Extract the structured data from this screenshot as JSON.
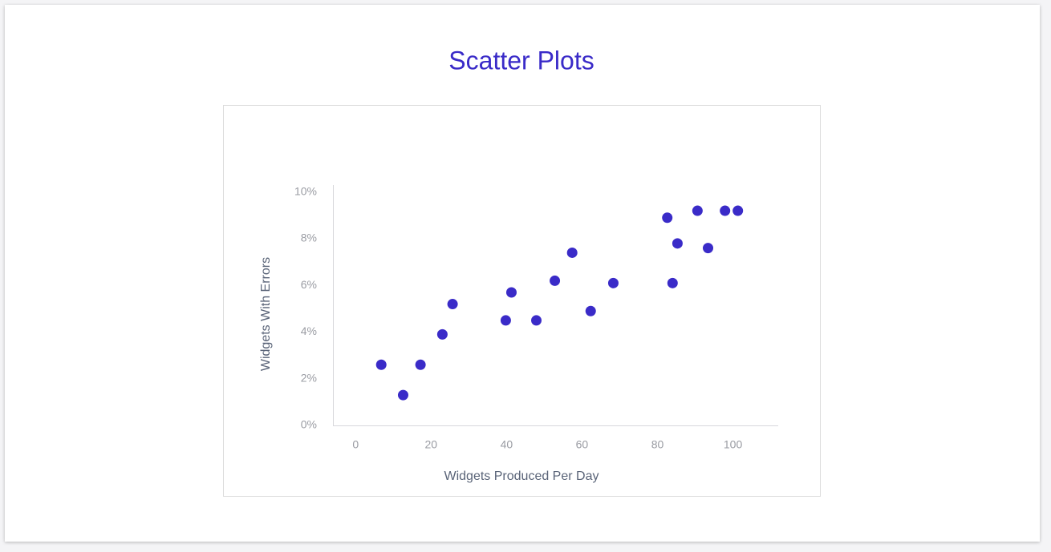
{
  "chart_data": {
    "type": "scatter",
    "title": "Scatter Plots",
    "x_label": "Widgets Produced Per Day",
    "y_label": "Widgets  With Errors",
    "color": "#3a2bc8",
    "x": [
      6.8,
      12.6,
      17.2,
      23,
      25.7,
      39.8,
      41.3,
      47.9,
      52.8,
      57.4,
      62.3,
      68.3,
      82.6,
      84,
      85.3,
      90.6,
      93.4,
      97.9,
      101.3
    ],
    "y": [
      2.6,
      1.3,
      2.6,
      3.9,
      5.2,
      4.5,
      5.7,
      4.5,
      6.2,
      7.4,
      4.9,
      6.1,
      8.9,
      6.1,
      7.8,
      9.2,
      7.6,
      9.2,
      9.2
    ],
    "xlim": [
      -6,
      112
    ],
    "ylim": [
      0,
      10.3
    ],
    "xticks": [
      0,
      20,
      40,
      60,
      80,
      100
    ],
    "yticks": [
      {
        "value": 0,
        "label": "0%"
      },
      {
        "value": 2,
        "label": "2%"
      },
      {
        "value": 4,
        "label": "4%"
      },
      {
        "value": 6,
        "label": "6%"
      },
      {
        "value": 8,
        "label": "8%"
      },
      {
        "value": 10,
        "label": "10%"
      }
    ]
  }
}
